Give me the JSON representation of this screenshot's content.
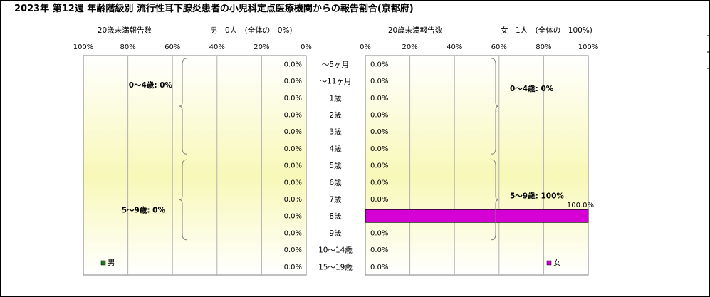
{
  "chart_data": {
    "type": "bar",
    "title": "2023年 第12週 年齢階級別 流行性耳下腺炎患者の小児科定点医療機関からの報告割合(京都府)",
    "categories": [
      "～5ヶ月",
      "～11ヶ月",
      "1歳",
      "2歳",
      "3歳",
      "4歳",
      "5歳",
      "6歳",
      "7歳",
      "8歳",
      "9歳",
      "10～14歳",
      "15～19歳"
    ],
    "male": {
      "header_sub": "20歳未満報告数",
      "header_main": "男　0人　(全体の　0%)",
      "legend": "男",
      "color": "#1e7a1e",
      "values": [
        0,
        0,
        0,
        0,
        0,
        0,
        0,
        0,
        0,
        0,
        0,
        0,
        0
      ],
      "value_labels": [
        "0.0%",
        "0.0%",
        "0.0%",
        "0.0%",
        "0.0%",
        "0.0%",
        "0.0%",
        "0.0%",
        "0.0%",
        "0.0%",
        "0.0%",
        "0.0%",
        "0.0%"
      ],
      "ticks": [
        "100%",
        "80%",
        "60%",
        "40%",
        "20%",
        "0%"
      ],
      "group_labels": [
        "0～4歳: 0%",
        "5～9歳: 0%"
      ]
    },
    "female": {
      "header_sub": "20歳未満報告数",
      "header_main": "女　1人　(全体の　100%)",
      "legend": "女",
      "color": "#d400d4",
      "values": [
        0,
        0,
        0,
        0,
        0,
        0,
        0,
        0,
        0,
        100,
        0,
        0,
        0
      ],
      "value_labels": [
        "0.0%",
        "0.0%",
        "0.0%",
        "0.0%",
        "0.0%",
        "0.0%",
        "0.0%",
        "0.0%",
        "0.0%",
        "100.0%",
        "0.0%",
        "0.0%",
        "0.0%"
      ],
      "ticks": [
        "0%",
        "20%",
        "40%",
        "60%",
        "80%",
        "100%"
      ],
      "group_labels": [
        "0～4歳: 0%",
        "5～9歳: 100%"
      ]
    },
    "xlim": [
      0,
      100
    ],
    "grid": true
  }
}
